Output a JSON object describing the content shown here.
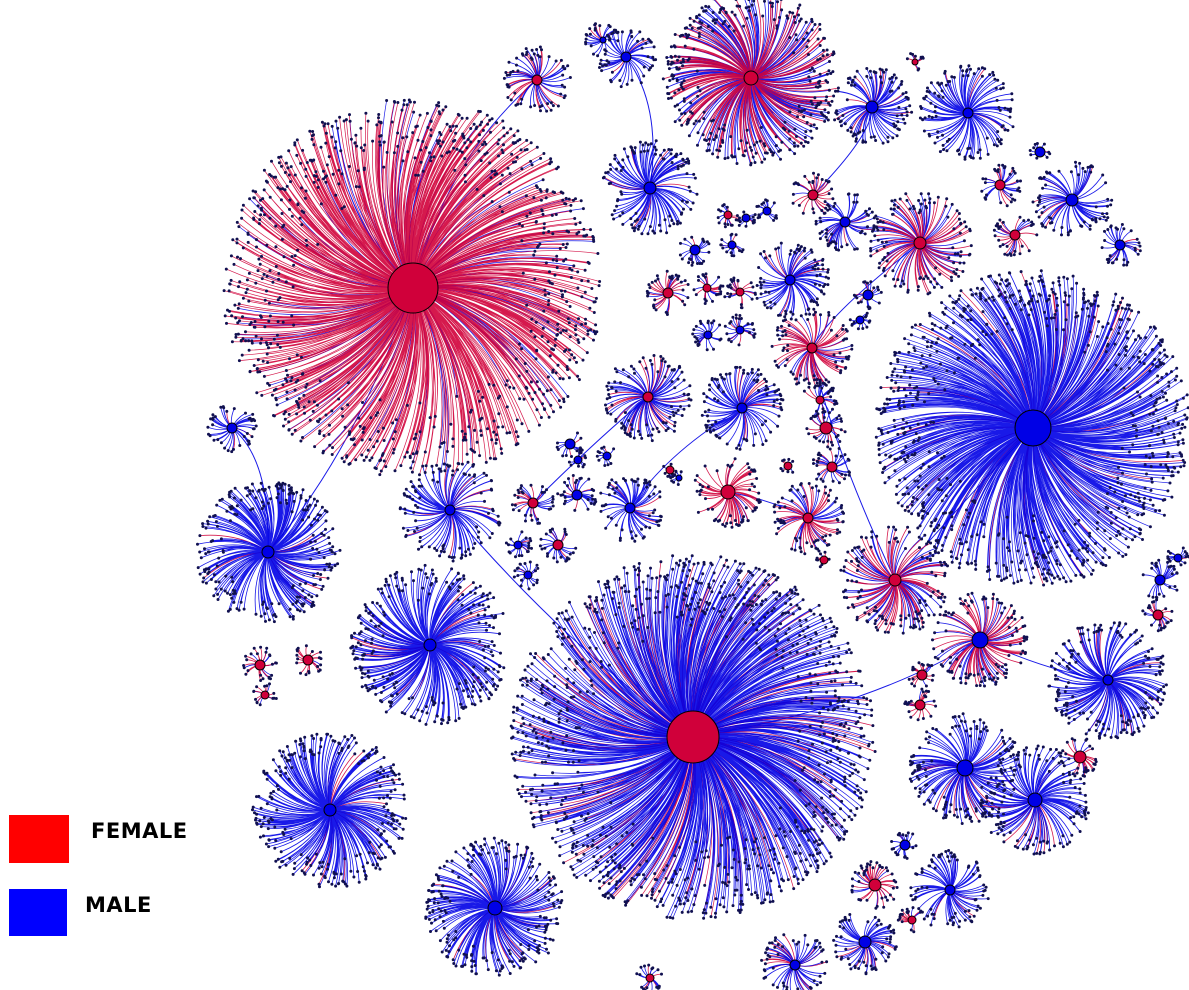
{
  "legend": {
    "female": {
      "label": "FEMALE",
      "color": "#ff0000"
    },
    "male": {
      "label": "MALE",
      "color": "#0000ff"
    }
  },
  "palette": {
    "female_edge": "#d0003a",
    "male_edge": "#0000e6",
    "leaf_node": "#101050",
    "node_stroke": "#000000"
  }
}
